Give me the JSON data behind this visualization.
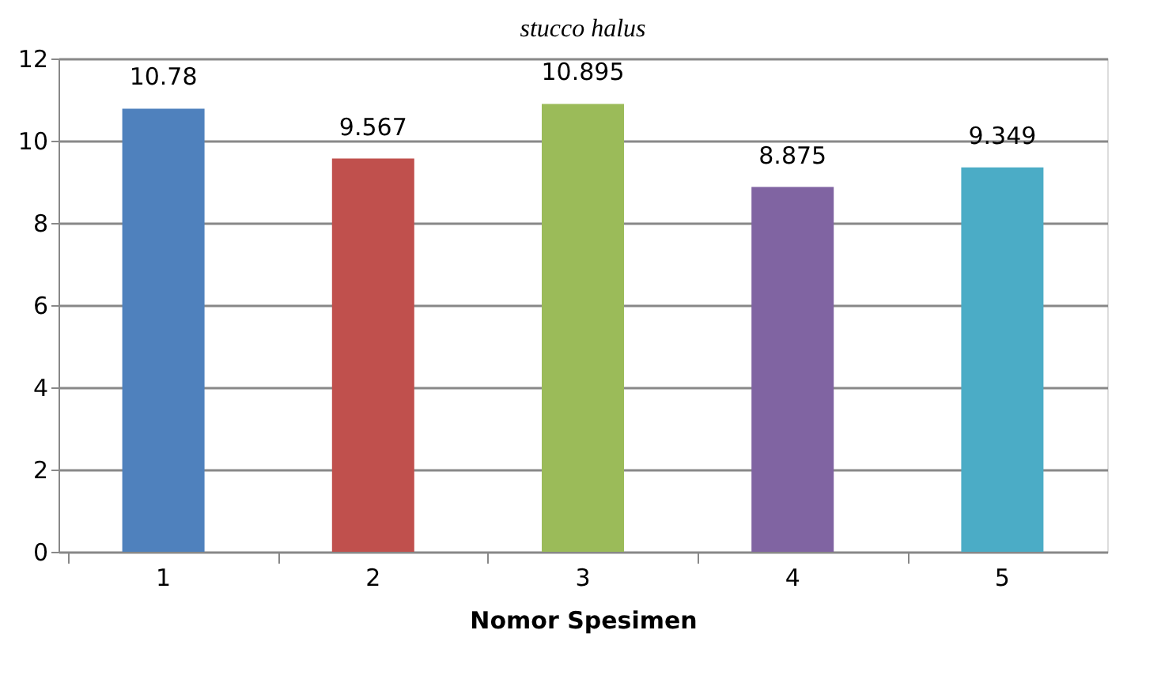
{
  "chart_data": {
    "type": "bar",
    "annotations": [
      "stucco halus"
    ],
    "xlabel": "Nomor Spesimen",
    "categories": [
      "1",
      "2",
      "3",
      "4",
      "5"
    ],
    "values": [
      10.78,
      9.567,
      10.895,
      8.875,
      9.349
    ],
    "colors": [
      "#4f81bd",
      "#c0504d",
      "#9bbb59",
      "#8064a2",
      "#4bacc6"
    ],
    "ylim": [
      0,
      12
    ],
    "yticks": [
      0,
      2,
      4,
      6,
      8,
      10,
      12
    ],
    "grid": "y",
    "data_labels": true
  }
}
